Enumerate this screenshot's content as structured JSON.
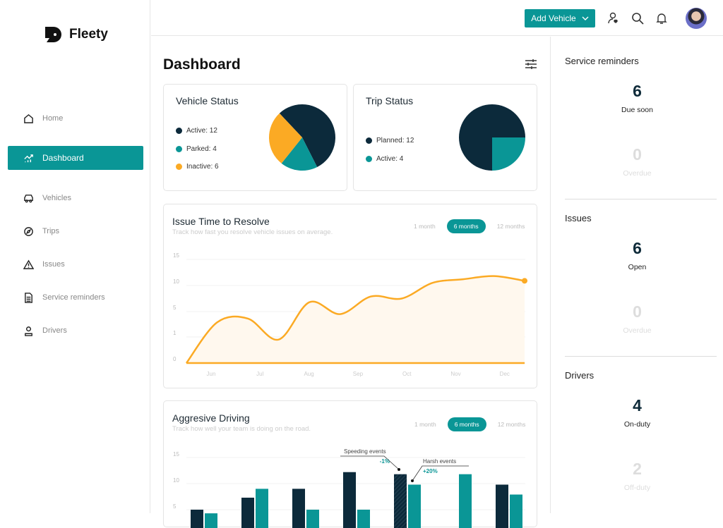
{
  "app": {
    "name": "Fleety"
  },
  "sidebar": {
    "items": [
      {
        "label": "Home",
        "icon": "home-icon"
      },
      {
        "label": "Dashboard",
        "icon": "chart-icon",
        "active": true
      },
      {
        "label": "Vehicles",
        "icon": "car-icon"
      },
      {
        "label": "Trips",
        "icon": "compass-icon"
      },
      {
        "label": "Issues",
        "icon": "warning-icon"
      },
      {
        "label": "Service reminders",
        "icon": "document-icon"
      },
      {
        "label": "Drivers",
        "icon": "user-icon"
      }
    ]
  },
  "topbar": {
    "add_vehicle": "Add Vehicle"
  },
  "page": {
    "title": "Dashboard"
  },
  "colors": {
    "teal": "#0a9696",
    "dark": "#0c2a3b",
    "orange": "#fbaa24"
  },
  "chart_data": [
    {
      "type": "pie",
      "title": "Vehicle Status",
      "slices": [
        {
          "name": "Active",
          "value": 12,
          "label": "Active: 12",
          "color": "#0c2a3b"
        },
        {
          "name": "Parked",
          "value": 4,
          "label": "Parked: 4",
          "color": "#0a9696"
        },
        {
          "name": "Inactive",
          "value": 6,
          "label": "Inactive: 6",
          "color": "#fbaa24"
        }
      ]
    },
    {
      "type": "pie",
      "title": "Trip Status",
      "slices": [
        {
          "name": "Planned",
          "value": 12,
          "label": "Planned: 12",
          "color": "#0c2a3b"
        },
        {
          "name": "Active",
          "value": 4,
          "label": "Active: 4",
          "color": "#0a9696"
        }
      ]
    },
    {
      "type": "area",
      "title": "Issue Time to Resolve",
      "subtitle": "Track how fast you resolve vehicle issues on average.",
      "ranges": [
        "1 month",
        "6 months",
        "12 months"
      ],
      "selected_range": "6 months",
      "yticks": [
        0,
        1,
        5,
        10,
        15
      ],
      "categories": [
        "Jun",
        "Jul",
        "Aug",
        "Sep",
        "Oct",
        "Nov",
        "Dec"
      ],
      "points": [
        0,
        3.3,
        3.9,
        0.9,
        6.8,
        4.6,
        7.9,
        7.5,
        10.5,
        11.2,
        11.8,
        10.9
      ],
      "color": "#fbaa24"
    },
    {
      "type": "bar",
      "title": "Aggresive Driving",
      "subtitle": "Track how well your team is doing on the road.",
      "ranges": [
        "1 month",
        "6 months",
        "12 months"
      ],
      "selected_range": "6 months",
      "yticks": [
        5,
        10,
        15
      ],
      "series": [
        {
          "name": "Speeding events",
          "values": [
            5,
            7.3,
            9,
            12.2,
            11.8,
            0,
            9.8
          ],
          "color": "#0c2a3b"
        },
        {
          "name": "Harsh events",
          "values": [
            4.3,
            9,
            5,
            5,
            9.8,
            11.8,
            7.9
          ],
          "color": "#0a9696"
        }
      ],
      "annotations": [
        {
          "text": "Speeding events",
          "change": "-1%"
        },
        {
          "text": "Harsh events",
          "change": "+20%"
        }
      ]
    }
  ],
  "reminders": {
    "title": "Service reminders",
    "due": {
      "value": "6",
      "label": "Due soon"
    },
    "overdue": {
      "value": "0",
      "label": "Overdue"
    }
  },
  "issues": {
    "title": "Issues",
    "open": {
      "value": "6",
      "label": "Open"
    },
    "overdue": {
      "value": "0",
      "label": "Overdue"
    }
  },
  "drivers": {
    "title": "Drivers",
    "on": {
      "value": "4",
      "label": "On-duty"
    },
    "off": {
      "value": "2",
      "label": "Off-duty"
    }
  }
}
